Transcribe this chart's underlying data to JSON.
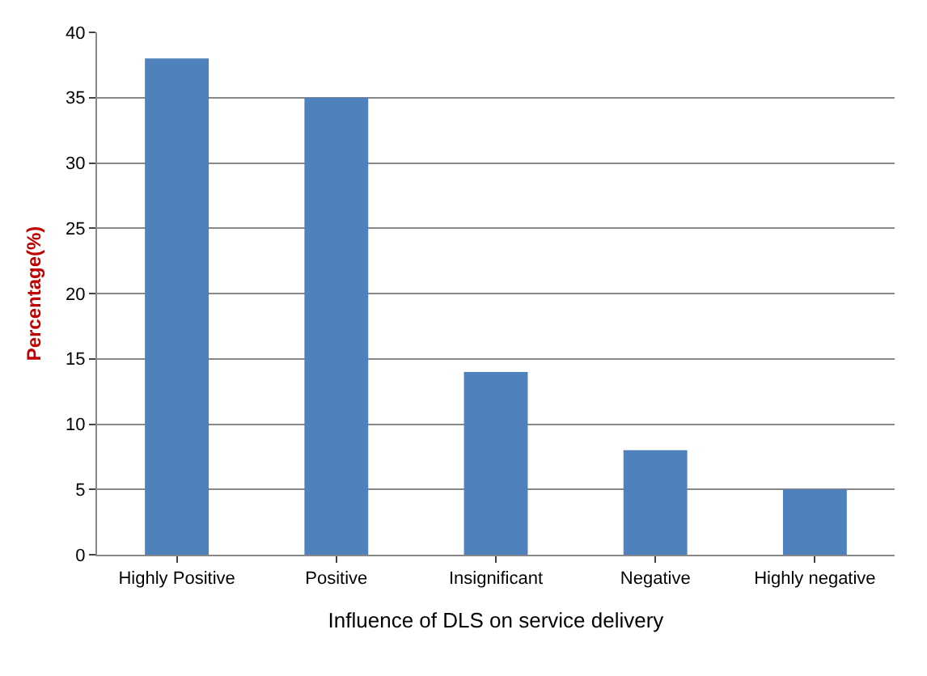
{
  "chart_data": {
    "type": "bar",
    "xlabel": "Influence of DLS on service delivery",
    "ylabel": "Percentage(%)",
    "categories": [
      "Highly Positive",
      "Positive",
      "Insignificant",
      "Negative",
      "Highly negative"
    ],
    "values": [
      38,
      35,
      14,
      8,
      5
    ],
    "color": "#4f81bd",
    "ylim": [
      0,
      40
    ],
    "yticks": [
      0,
      5,
      10,
      15,
      20,
      25,
      30,
      35,
      40
    ],
    "grid": "y"
  }
}
